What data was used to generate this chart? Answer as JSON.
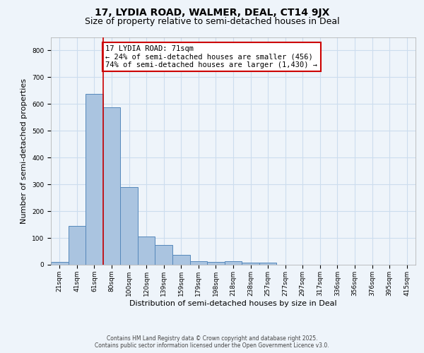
{
  "title1": "17, LYDIA ROAD, WALMER, DEAL, CT14 9JX",
  "title2": "Size of property relative to semi-detached houses in Deal",
  "xlabel": "Distribution of semi-detached houses by size in Deal",
  "ylabel": "Number of semi-detached properties",
  "categories": [
    "21sqm",
    "41sqm",
    "61sqm",
    "80sqm",
    "100sqm",
    "120sqm",
    "139sqm",
    "159sqm",
    "179sqm",
    "198sqm",
    "218sqm",
    "238sqm",
    "257sqm",
    "277sqm",
    "297sqm",
    "317sqm",
    "336sqm",
    "356sqm",
    "376sqm",
    "395sqm",
    "415sqm"
  ],
  "values": [
    10,
    145,
    638,
    588,
    290,
    105,
    75,
    38,
    12,
    11,
    13,
    8,
    8,
    0,
    0,
    0,
    0,
    0,
    0,
    0,
    0
  ],
  "bar_color": "#aac4e0",
  "bar_edge_color": "#5588bb",
  "vline_x": 2.5,
  "vline_color": "#cc0000",
  "annotation_text": "17 LYDIA ROAD: 71sqm\n← 24% of semi-detached houses are smaller (456)\n74% of semi-detached houses are larger (1,430) →",
  "annotation_box_color": "#ffffff",
  "annotation_box_edge": "#cc0000",
  "ylim": [
    0,
    850
  ],
  "yticks": [
    0,
    100,
    200,
    300,
    400,
    500,
    600,
    700,
    800
  ],
  "grid_color": "#ccddee",
  "background_color": "#eef4fa",
  "footer_line1": "Contains HM Land Registry data © Crown copyright and database right 2025.",
  "footer_line2": "Contains public sector information licensed under the Open Government Licence v3.0.",
  "title_fontsize": 10,
  "subtitle_fontsize": 9,
  "axis_label_fontsize": 8,
  "tick_fontsize": 6.5,
  "annotation_fontsize": 7.5,
  "footer_fontsize": 5.5
}
